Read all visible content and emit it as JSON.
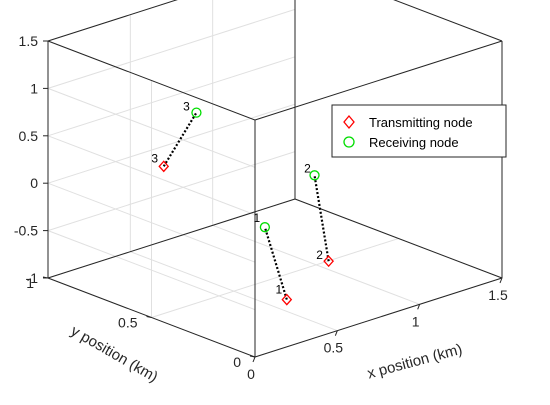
{
  "chart_data": {
    "type": "scatter",
    "title": "",
    "xlabel": "x position (km)",
    "ylabel": "y position (km)",
    "zlabel": "",
    "xlim": [
      0,
      1.5
    ],
    "ylim": [
      0,
      1
    ],
    "zlim": [
      -1,
      1.5
    ],
    "xticks": [
      "0",
      "0.5",
      "1",
      "1.5"
    ],
    "yticks": [
      "0",
      "0.5",
      "1"
    ],
    "zticks": [
      "-1",
      "-0.5",
      "0",
      "0.5",
      "1",
      "1.5"
    ],
    "grid": true,
    "box": true,
    "legend": {
      "position": "right"
    },
    "series": [
      {
        "name": "Transmitting node",
        "marker": "diamond",
        "color": "#ff0000",
        "labels": [
          "1",
          "2",
          "3"
        ],
        "x": [
          0.52,
          0.95,
          0.2
        ],
        "y": [
          0.26,
          0.4,
          0.6
        ],
        "z": [
          -0.9,
          -0.85,
          0.4
        ]
      },
      {
        "name": "Receiving node",
        "marker": "circle",
        "color": "#00dd00",
        "labels": [
          "1",
          "2",
          "3"
        ],
        "x": [
          0.5,
          0.99,
          0.65
        ],
        "y": [
          0.35,
          0.5,
          0.8
        ],
        "z": [
          -0.2,
          -0.05,
          0.55
        ]
      }
    ],
    "connectors": {
      "style": "dotted",
      "color": "#000000",
      "pairs": [
        [
          0,
          0
        ],
        [
          1,
          1
        ],
        [
          2,
          2
        ]
      ]
    }
  }
}
